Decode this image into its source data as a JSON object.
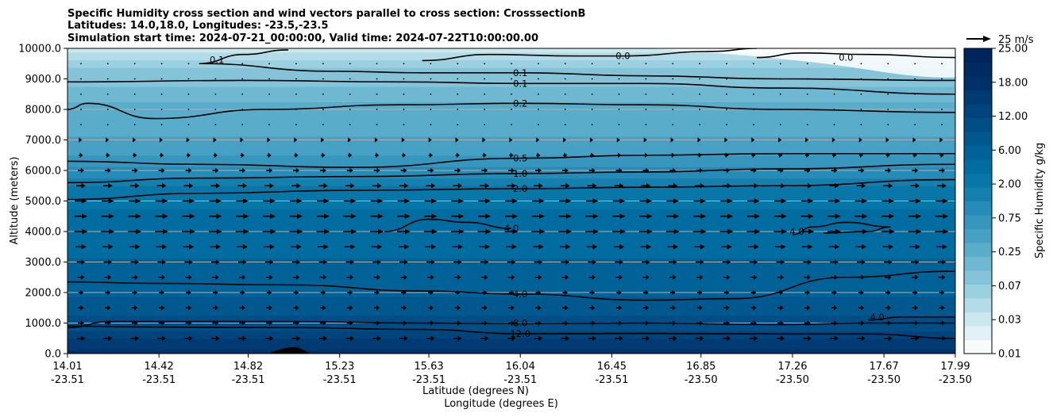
{
  "chart_data": {
    "type": "heatmap",
    "title_lines": [
      "Specific Humidity cross section and wind vectors parallel to cross section: CrosssectionB",
      "Latitudes: 14.0,18.0, Longitudes: -23.5,-23.5",
      "Simulation start time: 2024-07-21_00:00:00, Valid time: 2024-07-22T10:00:00.00"
    ],
    "ylabel": "Altitude (meters)",
    "xlabel_lines": [
      "Latitude (degrees N)",
      "Longitude (degrees E)"
    ],
    "ylim": [
      0,
      10000
    ],
    "y_ticks": [
      "0.0",
      "1000.0",
      "2000.0",
      "3000.0",
      "4000.0",
      "5000.0",
      "6000.0",
      "7000.0",
      "8000.0",
      "9000.0",
      "10000.0"
    ],
    "y_tick_values": [
      0,
      1000,
      2000,
      3000,
      4000,
      5000,
      6000,
      7000,
      8000,
      9000,
      10000
    ],
    "xlim": [
      14.01,
      17.99
    ],
    "x_tick_values": [
      14.01,
      14.42,
      14.82,
      15.23,
      15.63,
      16.04,
      16.45,
      16.85,
      17.26,
      17.67,
      17.99
    ],
    "x_tick_lat": [
      "14.01",
      "14.42",
      "14.82",
      "15.23",
      "15.63",
      "16.04",
      "16.45",
      "16.85",
      "17.26",
      "17.67",
      "17.99"
    ],
    "x_tick_lon": [
      "-23.51",
      "-23.51",
      "-23.51",
      "-23.51",
      "-23.51",
      "-23.51",
      "-23.51",
      "-23.50",
      "-23.50",
      "-23.50",
      "-23.50"
    ],
    "grid": "horizontal",
    "colorbar": {
      "label": "Specific Humidity g/kg",
      "ticks": [
        "0.01",
        "0.03",
        "0.07",
        "0.25",
        "0.75",
        "2.00",
        "6.00",
        "12.00",
        "18.00",
        "25.00"
      ],
      "colors": [
        "#f7fbfc",
        "#e2f1f5",
        "#cce8ef",
        "#b3dce8",
        "#9bd0e0",
        "#84c3d8",
        "#6fb8d1",
        "#5aaccb",
        "#47a1c4",
        "#3796bd",
        "#268bb6",
        "#1580ae",
        "#0877a7",
        "#006c9f",
        "#006297",
        "#00588e",
        "#004e85",
        "#00447d",
        "#003a72",
        "#003068",
        "#002a62",
        "#00245c"
      ]
    },
    "humidity_profile": [
      {
        "alt": 0,
        "q": 18.0
      },
      {
        "alt": 500,
        "q": 14.0
      },
      {
        "alt": 1000,
        "q": 10.0
      },
      {
        "alt": 2000,
        "q": 6.5
      },
      {
        "alt": 3000,
        "q": 5.0
      },
      {
        "alt": 4000,
        "q": 4.2
      },
      {
        "alt": 5000,
        "q": 3.0
      },
      {
        "alt": 5500,
        "q": 1.8
      },
      {
        "alt": 6000,
        "q": 1.0
      },
      {
        "alt": 6500,
        "q": 0.55
      },
      {
        "alt": 7000,
        "q": 0.4
      },
      {
        "alt": 8000,
        "q": 0.25
      },
      {
        "alt": 9000,
        "q": 0.12
      },
      {
        "alt": 9500,
        "q": 0.07
      },
      {
        "alt": 10000,
        "q": 0.03
      }
    ],
    "contours": [
      {
        "label": "12.0",
        "points": [
          [
            14.01,
            900
          ],
          [
            14.4,
            870
          ],
          [
            15.0,
            850
          ],
          [
            15.6,
            790
          ],
          [
            16.04,
            650
          ],
          [
            16.6,
            660
          ],
          [
            17.2,
            640
          ],
          [
            17.6,
            640
          ],
          [
            17.99,
            500
          ]
        ],
        "label_at": [
          16.04,
          650
        ]
      },
      {
        "label": "8.0",
        "points": [
          [
            14.01,
            850
          ],
          [
            14.2,
            1050
          ],
          [
            15.0,
            1050
          ],
          [
            15.6,
            1000
          ],
          [
            16.04,
            980
          ],
          [
            16.6,
            1000
          ],
          [
            17.2,
            950
          ],
          [
            17.6,
            1000
          ],
          [
            17.99,
            1000
          ]
        ],
        "label_at": [
          16.04,
          1000
        ]
      },
      {
        "label": "4.0",
        "points": [
          [
            14.01,
            2350
          ],
          [
            14.4,
            2300
          ],
          [
            15.0,
            2250
          ],
          [
            15.6,
            2050
          ],
          [
            16.04,
            1950
          ],
          [
            16.6,
            1750
          ],
          [
            17.0,
            1800
          ],
          [
            17.5,
            2500
          ],
          [
            17.99,
            2700
          ]
        ],
        "label_at": [
          16.04,
          1950
        ]
      },
      {
        "label": "4.0",
        "points": [
          [
            15.43,
            4000
          ],
          [
            15.63,
            4400
          ],
          [
            15.8,
            4300
          ],
          [
            16.0,
            4100
          ]
        ],
        "label_at": [
          16.0,
          4100
        ]
      },
      {
        "label": "4.0",
        "points": [
          [
            17.26,
            3900
          ],
          [
            17.35,
            4150
          ],
          [
            17.5,
            4300
          ],
          [
            17.7,
            4150
          ],
          [
            17.6,
            4000
          ],
          [
            17.4,
            3950
          ]
        ],
        "label_at": [
          17.28,
          4000
        ]
      },
      {
        "label": "4.0",
        "points": [
          [
            17.6,
            1100
          ],
          [
            17.75,
            1200
          ],
          [
            17.99,
            1200
          ]
        ],
        "label_at": [
          17.64,
          1200
        ]
      },
      {
        "label": "2.0",
        "points": [
          [
            14.01,
            5050
          ],
          [
            14.6,
            5250
          ],
          [
            15.3,
            5350
          ],
          [
            16.04,
            5400
          ],
          [
            16.6,
            5450
          ],
          [
            17.2,
            5500
          ],
          [
            17.99,
            5700
          ]
        ],
        "label_at": [
          16.04,
          5400
        ]
      },
      {
        "label": "1.0",
        "points": [
          [
            14.01,
            5600
          ],
          [
            14.6,
            5750
          ],
          [
            15.3,
            5800
          ],
          [
            16.04,
            5900
          ],
          [
            16.6,
            5950
          ],
          [
            17.2,
            6050
          ],
          [
            17.99,
            6200
          ]
        ],
        "label_at": [
          16.04,
          5900
        ]
      },
      {
        "label": "0.5",
        "points": [
          [
            14.01,
            6300
          ],
          [
            14.6,
            6200
          ],
          [
            15.3,
            6100
          ],
          [
            16.04,
            6400
          ],
          [
            16.6,
            6500
          ],
          [
            17.2,
            6550
          ],
          [
            17.99,
            6550
          ]
        ],
        "label_at": [
          16.04,
          6400
        ]
      },
      {
        "label": "0.2",
        "points": [
          [
            14.01,
            8000
          ],
          [
            14.1,
            8200
          ],
          [
            14.4,
            7700
          ],
          [
            14.9,
            8000
          ],
          [
            15.5,
            8150
          ],
          [
            16.04,
            8200
          ],
          [
            16.6,
            8150
          ],
          [
            17.2,
            8000
          ],
          [
            17.99,
            7900
          ]
        ],
        "label_at": [
          16.04,
          8200
        ]
      },
      {
        "label": "0.1",
        "points": [
          [
            14.01,
            8900
          ],
          [
            14.8,
            8950
          ],
          [
            15.5,
            8900
          ],
          [
            16.04,
            8850
          ],
          [
            16.6,
            8850
          ],
          [
            17.2,
            8700
          ],
          [
            17.99,
            8500
          ]
        ],
        "label_at": [
          16.04,
          8850
        ]
      },
      {
        "label": "0.1",
        "points": [
          [
            14.6,
            9500
          ],
          [
            15.2,
            9250
          ],
          [
            15.6,
            9200
          ],
          [
            16.04,
            9200
          ],
          [
            16.6,
            9100
          ],
          [
            17.2,
            9000
          ],
          [
            17.99,
            8950
          ]
        ],
        "label_at": [
          16.04,
          9200
        ]
      },
      {
        "label": "0.1",
        "points": [
          [
            14.6,
            9500
          ],
          [
            14.8,
            9800
          ],
          [
            15.0,
            9950
          ]
        ],
        "label_at": [
          14.68,
          9620
        ]
      },
      {
        "label": "0.0",
        "points": [
          [
            15.6,
            9600
          ],
          [
            15.9,
            9800
          ],
          [
            16.3,
            9750
          ],
          [
            16.5,
            9750
          ],
          [
            16.9,
            9900
          ],
          [
            17.1,
            10000
          ]
        ],
        "label_at": [
          16.5,
          9750
        ]
      },
      {
        "label": "0.0",
        "points": [
          [
            17.1,
            9700
          ],
          [
            17.3,
            9850
          ],
          [
            17.6,
            9800
          ],
          [
            17.99,
            9700
          ]
        ],
        "label_at": [
          17.5,
          9700
        ]
      }
    ],
    "quiver": {
      "reference": "25 m/s",
      "reference_speed": 25,
      "speed_profile": [
        {
          "alt": 0,
          "speed": 8
        },
        {
          "alt": 500,
          "speed": 8
        },
        {
          "alt": 1000,
          "speed": 6
        },
        {
          "alt": 2000,
          "speed": 5
        },
        {
          "alt": 3000,
          "speed": 8
        },
        {
          "alt": 4000,
          "speed": 13
        },
        {
          "alt": 5000,
          "speed": 12
        },
        {
          "alt": 6000,
          "speed": 6
        },
        {
          "alt": 7000,
          "speed": 2
        },
        {
          "alt": 8000,
          "speed": 1
        },
        {
          "alt": 9000,
          "speed": 0.5
        },
        {
          "alt": 10000,
          "speed": 0.3
        }
      ]
    }
  }
}
